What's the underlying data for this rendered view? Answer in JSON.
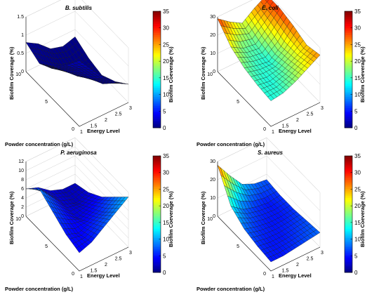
{
  "colormap": "jet",
  "chart_data": [
    {
      "type": "surface",
      "title": "B. subtilis",
      "xlabel": "Energy Level",
      "ylabel": "Powder concentration (g/L)",
      "zlabel": "Biofilm Coverage (%)",
      "colorbar_label": "Biofilm Coeverage (%)",
      "x_ticks": [
        "1",
        "1.5",
        "2",
        "2.5",
        "3"
      ],
      "y_ticks": [
        "0",
        "5",
        "10"
      ],
      "z_ticks": [
        "0",
        "0.5",
        "1",
        "1.5"
      ],
      "colorbar_ticks": [
        "0",
        "5",
        "10",
        "15",
        "20",
        "25",
        "30",
        "35"
      ],
      "xlim": [
        1,
        3
      ],
      "ylim": [
        0,
        10
      ],
      "zlim": [
        0,
        1.5
      ],
      "clim": [
        0,
        35
      ],
      "energy": [
        1,
        1.5,
        2,
        2.5,
        3
      ],
      "concentration": [
        0,
        2.5,
        5,
        7.5,
        10
      ],
      "coverage": [
        [
          1.8,
          1.4,
          1.0,
          0.7,
          0.5
        ],
        [
          1.3,
          1.0,
          0.6,
          0.3,
          0.2
        ],
        [
          0.9,
          0.6,
          0.3,
          0.1,
          0.0
        ],
        [
          0.6,
          0.3,
          0.1,
          0.0,
          0.1
        ],
        [
          0.8,
          0.6,
          0.3,
          0.2,
          0.3
        ]
      ]
    },
    {
      "type": "surface",
      "title": "E. coli",
      "xlabel": "Energy Level",
      "ylabel": "Powder concentration (g/L)",
      "zlabel": "Biofilm Coverage (%)",
      "colorbar_label": "Biofilm Coeverage (%)",
      "x_ticks": [
        "1",
        "1.5",
        "2",
        "2.5",
        "3"
      ],
      "y_ticks": [
        "0",
        "5",
        "10"
      ],
      "z_ticks": [
        "0",
        "10",
        "20",
        "30"
      ],
      "colorbar_ticks": [
        "0",
        "5",
        "10",
        "15",
        "20",
        "25",
        "30",
        "35"
      ],
      "xlim": [
        1,
        3
      ],
      "ylim": [
        0,
        10
      ],
      "zlim": [
        0,
        30
      ],
      "clim": [
        0,
        35
      ],
      "energy": [
        1,
        1.5,
        2,
        2.5,
        3
      ],
      "concentration": [
        0,
        2.5,
        5,
        7.5,
        10
      ],
      "coverage": [
        [
          14,
          15,
          18,
          22,
          26
        ],
        [
          15,
          14,
          16,
          20,
          24
        ],
        [
          17,
          15,
          14,
          19,
          27
        ],
        [
          21,
          17,
          16,
          22,
          29
        ],
        [
          29,
          24,
          20,
          25,
          29
        ]
      ]
    },
    {
      "type": "surface",
      "title": "P. aeruginosa",
      "xlabel": "Energy Level",
      "ylabel": "Powder concentration (g/L)",
      "zlabel": "Biofilm Coverage (%)",
      "colorbar_label": "Biofilm Coeverage (%)",
      "x_ticks": [
        "1",
        "1.5",
        "2",
        "2.5",
        "3"
      ],
      "y_ticks": [
        "0",
        "5",
        "10"
      ],
      "z_ticks": [
        "0",
        "2",
        "4",
        "6",
        "8",
        "10",
        "12"
      ],
      "colorbar_ticks": [
        "0",
        "5",
        "10",
        "15",
        "20",
        "25",
        "30",
        "35"
      ],
      "xlim": [
        1,
        3
      ],
      "ylim": [
        0,
        10
      ],
      "zlim": [
        0,
        12
      ],
      "clim": [
        0,
        35
      ],
      "energy": [
        1,
        1.5,
        2,
        2.5,
        3
      ],
      "concentration": [
        0,
        2.5,
        5,
        7.5,
        10
      ],
      "coverage": [
        [
          4,
          5,
          7,
          9,
          11
        ],
        [
          5,
          4,
          5,
          6,
          8
        ],
        [
          7,
          5,
          3,
          4,
          5
        ],
        [
          9,
          6,
          3,
          2,
          3
        ],
        [
          6,
          5,
          3,
          2,
          2
        ]
      ]
    },
    {
      "type": "surface",
      "title": "S. aureus",
      "xlabel": "Energy Level",
      "ylabel": "Powder concentration (g/L)",
      "zlabel": "Biofilm Coverage (%)",
      "colorbar_label": "Biofilm Coeverage (%)",
      "x_ticks": [
        "1",
        "1.5",
        "2",
        "2.5",
        "3"
      ],
      "y_ticks": [
        "0",
        "5",
        "10"
      ],
      "z_ticks": [
        "0",
        "10",
        "20",
        "30"
      ],
      "colorbar_ticks": [
        "0",
        "5",
        "10",
        "15",
        "20",
        "25",
        "30",
        "35"
      ],
      "xlim": [
        1,
        3
      ],
      "ylim": [
        0,
        10
      ],
      "zlim": [
        0,
        30
      ],
      "clim": [
        0,
        35
      ],
      "energy": [
        1,
        1.5,
        2,
        2.5,
        3
      ],
      "concentration": [
        0,
        2.5,
        5,
        7.5,
        10
      ],
      "coverage": [
        [
          5,
          5,
          6,
          7,
          8
        ],
        [
          6,
          5,
          5,
          6,
          7
        ],
        [
          8,
          6,
          5,
          5,
          6
        ],
        [
          13,
          8,
          6,
          5,
          6
        ],
        [
          28,
          19,
          11,
          8,
          7
        ]
      ]
    }
  ]
}
